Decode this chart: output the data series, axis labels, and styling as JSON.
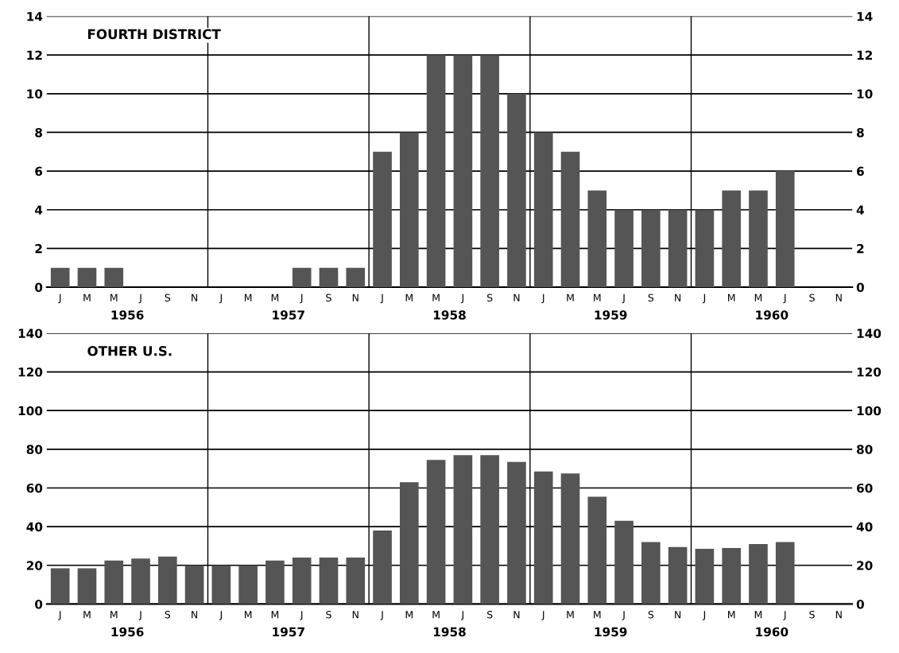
{
  "chart_data": [
    {
      "type": "bar",
      "title": "FOURTH DISTRICT",
      "categories": [
        "J",
        "M",
        "M",
        "J",
        "S",
        "N",
        "J",
        "M",
        "M",
        "J",
        "S",
        "N",
        "J",
        "M",
        "M",
        "J",
        "S",
        "N",
        "J",
        "M",
        "M",
        "J",
        "S",
        "N",
        "J",
        "M",
        "M",
        "J",
        "S",
        "N"
      ],
      "values": [
        1,
        1,
        1,
        0,
        0,
        0,
        0,
        0,
        0,
        1,
        1,
        1,
        7,
        8,
        12,
        12,
        12,
        10,
        8,
        7,
        5,
        4,
        4,
        4,
        4,
        5,
        5,
        6,
        0,
        0
      ],
      "color": "#555555",
      "ylim": [
        0,
        14
      ],
      "yticks": [
        0,
        2,
        4,
        6,
        8,
        10,
        12,
        14
      ],
      "y2lim": [
        0,
        14
      ],
      "y2ticks": [
        0,
        2,
        4,
        6,
        8,
        10,
        12,
        14
      ],
      "grid": "y",
      "annotations": [
        "1956",
        "1957",
        "1958",
        "1959",
        "1960"
      ]
    },
    {
      "type": "bar",
      "title": "OTHER U.S.",
      "categories": [
        "J",
        "M",
        "M",
        "J",
        "S",
        "N",
        "J",
        "M",
        "M",
        "J",
        "S",
        "N",
        "J",
        "M",
        "M",
        "J",
        "S",
        "N",
        "J",
        "M",
        "M",
        "J",
        "S",
        "N",
        "J",
        "M",
        "M",
        "J",
        "S",
        "N"
      ],
      "values": [
        18.5,
        18.5,
        22.5,
        23.5,
        24.5,
        20,
        20,
        20,
        22.5,
        24,
        24,
        24,
        38,
        63,
        74.5,
        77,
        77,
        73.5,
        68.5,
        67.5,
        55.5,
        43,
        32,
        29.5,
        28.5,
        29,
        31,
        32,
        null,
        null
      ],
      "color": "#555555",
      "ylim": [
        0,
        140
      ],
      "yticks": [
        0,
        20,
        40,
        60,
        80,
        100,
        120,
        140
      ],
      "y2lim": [
        0,
        140
      ],
      "y2ticks": [
        0,
        20,
        40,
        60,
        80,
        100,
        120,
        140
      ],
      "grid": "y",
      "annotations": [
        "1956",
        "1957",
        "1958",
        "1959",
        "1960"
      ]
    }
  ]
}
